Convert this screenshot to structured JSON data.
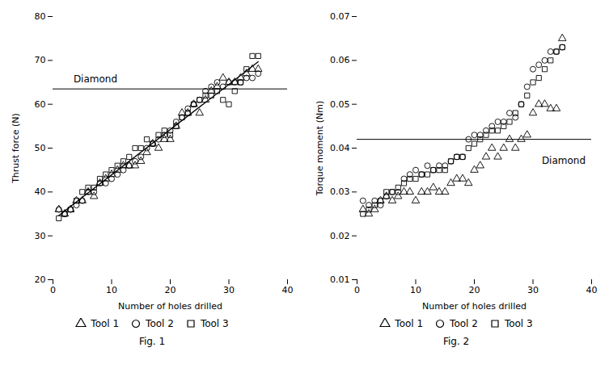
{
  "chart_data": [
    {
      "type": "scatter",
      "title": "Fig. 1",
      "xlabel": "Number of holes drilled",
      "ylabel": "Thrust force (N)",
      "xlim": [
        0,
        40
      ],
      "ylim": [
        20,
        80
      ],
      "xticks": [
        0,
        10,
        20,
        30,
        40
      ],
      "yticks": [
        20,
        30,
        40,
        50,
        60,
        70,
        80
      ],
      "grid": false,
      "legend": "bottom",
      "hlines": [
        63.5
      ],
      "annotations": [
        {
          "text": "Diamond",
          "x": 3.5,
          "y": 65.0
        }
      ],
      "series": [
        {
          "name": "Tool 1",
          "type": "scatter",
          "marker": "triangle",
          "color": "black",
          "x": [
            1,
            2,
            3,
            4,
            5,
            6,
            7,
            8,
            9,
            10,
            11,
            12,
            13,
            14,
            15,
            16,
            17,
            18,
            19,
            20,
            21,
            22,
            23,
            24,
            25,
            26,
            27,
            28,
            29,
            30,
            31,
            32,
            33,
            34,
            35
          ],
          "values": [
            36,
            35,
            36,
            38,
            38,
            40,
            39,
            42,
            43,
            44,
            45,
            46,
            46,
            46,
            47,
            49,
            51,
            50,
            52,
            52,
            55,
            58,
            58,
            60,
            58,
            61,
            63,
            64,
            66,
            65,
            65,
            66,
            67,
            68,
            68
          ]
        },
        {
          "name": "Tool 2",
          "type": "scatter",
          "marker": "circle",
          "color": "black",
          "x": [
            1,
            2,
            3,
            4,
            5,
            6,
            7,
            8,
            9,
            10,
            11,
            12,
            13,
            14,
            15,
            16,
            17,
            18,
            19,
            20,
            21,
            22,
            23,
            24,
            25,
            26,
            27,
            28,
            29,
            30,
            31,
            32,
            33,
            34,
            35
          ],
          "values": [
            36,
            35,
            36,
            37,
            38,
            40,
            40,
            42,
            42,
            43,
            44,
            45,
            46,
            47,
            48,
            50,
            51,
            52,
            53,
            54,
            56,
            57,
            59,
            60,
            61,
            63,
            64,
            65,
            64,
            65,
            65,
            65,
            66,
            66,
            67
          ]
        },
        {
          "name": "Tool 3",
          "type": "scatter",
          "marker": "square",
          "color": "black",
          "x": [
            1,
            2,
            3,
            4,
            5,
            6,
            7,
            8,
            9,
            10,
            11,
            12,
            13,
            14,
            15,
            16,
            17,
            18,
            19,
            20,
            21,
            22,
            23,
            24,
            25,
            26,
            27,
            28,
            29,
            30,
            31,
            32,
            33,
            34,
            35
          ],
          "values": [
            34,
            35,
            36,
            38,
            40,
            41,
            41,
            43,
            44,
            45,
            46,
            47,
            48,
            50,
            50,
            52,
            51,
            53,
            54,
            53,
            55,
            57,
            58,
            60,
            61,
            62,
            62,
            63,
            61,
            60,
            63,
            65,
            68,
            71,
            71
          ]
        },
        {
          "type": "line",
          "line_style": "solid",
          "color": "black",
          "x": [
            1,
            35
          ],
          "values": [
            34.651,
            69.673
          ]
        }
      ]
    },
    {
      "type": "scatter",
      "title": "Fig. 2",
      "xlabel": "Number of holes drilled",
      "ylabel": "Torque moment (Nm)",
      "xlim": [
        0,
        40
      ],
      "ylim": [
        0.01,
        0.07
      ],
      "xticks": [
        0,
        10,
        20,
        30,
        40
      ],
      "yticks": [
        0.01,
        0.02,
        0.03,
        0.04,
        0.05,
        0.06,
        0.07
      ],
      "grid": false,
      "legend": "bottom",
      "hlines": [
        0.042
      ],
      "annotations": [
        {
          "text": "Diamond",
          "x": 31.5,
          "y": 0.038
        }
      ],
      "series": [
        {
          "name": "Tool 1",
          "type": "scatter",
          "marker": "triangle",
          "color": "black",
          "x": [
            1,
            2,
            3,
            4,
            5,
            6,
            7,
            8,
            9,
            10,
            11,
            12,
            13,
            14,
            15,
            16,
            17,
            18,
            19,
            20,
            21,
            22,
            23,
            24,
            25,
            26,
            27,
            28,
            29,
            30,
            31,
            32,
            33,
            34,
            35
          ],
          "values": [
            0.026,
            0.025,
            0.026,
            0.028,
            0.029,
            0.028,
            0.029,
            0.03,
            0.03,
            0.028,
            0.03,
            0.03,
            0.031,
            0.03,
            0.03,
            0.032,
            0.033,
            0.033,
            0.032,
            0.035,
            0.036,
            0.038,
            0.04,
            0.038,
            0.04,
            0.042,
            0.04,
            0.042,
            0.043,
            0.048,
            0.05,
            0.05,
            0.049,
            0.049,
            0.065
          ]
        },
        {
          "name": "Tool 2",
          "type": "scatter",
          "marker": "circle",
          "color": "black",
          "x": [
            1,
            2,
            3,
            4,
            5,
            6,
            7,
            8,
            9,
            10,
            11,
            12,
            13,
            14,
            15,
            16,
            17,
            18,
            19,
            20,
            21,
            22,
            23,
            24,
            25,
            26,
            27,
            28,
            29,
            30,
            31,
            32,
            33,
            34,
            35
          ],
          "values": [
            0.028,
            0.027,
            0.028,
            0.027,
            0.029,
            0.03,
            0.03,
            0.033,
            0.034,
            0.035,
            0.034,
            0.036,
            0.035,
            0.036,
            0.036,
            0.037,
            0.038,
            0.038,
            0.042,
            0.043,
            0.043,
            0.044,
            0.045,
            0.046,
            0.046,
            0.048,
            0.047,
            0.05,
            0.054,
            0.058,
            0.059,
            0.06,
            0.062,
            0.062,
            0.063
          ]
        },
        {
          "name": "Tool 3",
          "type": "scatter",
          "marker": "square",
          "color": "black",
          "x": [
            1,
            2,
            3,
            4,
            5,
            6,
            7,
            8,
            9,
            10,
            11,
            12,
            13,
            14,
            15,
            16,
            17,
            18,
            19,
            20,
            21,
            22,
            23,
            24,
            25,
            26,
            27,
            28,
            29,
            30,
            31,
            32,
            33,
            34,
            35
          ],
          "values": [
            0.025,
            0.026,
            0.027,
            0.028,
            0.03,
            0.03,
            0.031,
            0.032,
            0.033,
            0.033,
            0.034,
            0.034,
            0.035,
            0.035,
            0.035,
            0.037,
            0.038,
            0.038,
            0.04,
            0.041,
            0.042,
            0.043,
            0.044,
            0.044,
            0.045,
            0.046,
            0.048,
            0.05,
            0.052,
            0.055,
            0.056,
            0.058,
            0.06,
            0.062,
            0.063
          ]
        }
      ]
    }
  ]
}
